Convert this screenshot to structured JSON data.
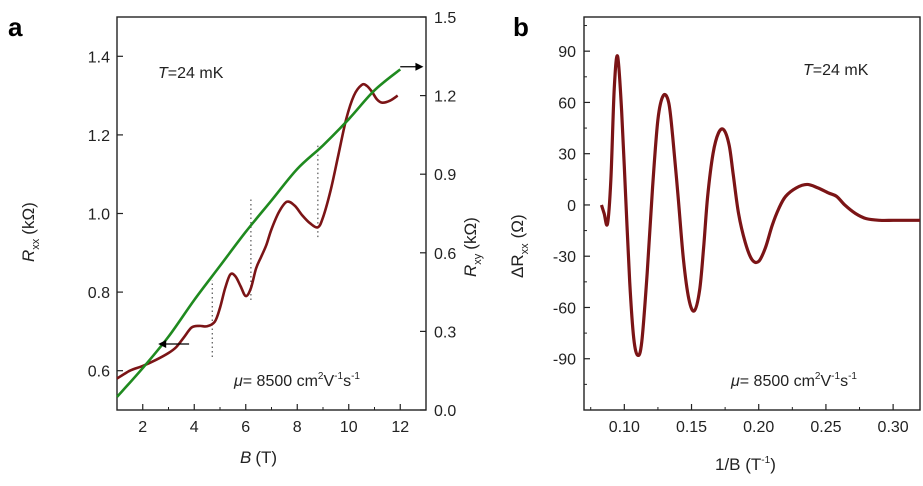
{
  "colors": {
    "rxx": "#7b1416",
    "rxy": "#1f8a1f",
    "axis": "#222222",
    "dotted": "#555555"
  },
  "chart_data": [
    {
      "panel": "a",
      "type": "line",
      "annotation_temp": "=24 mK",
      "annotation_temp_symbol": "T",
      "annotation_mu": "= 8500 cm",
      "annotation_mu_symbol": "μ",
      "annotation_mu_units": {
        "sup1": "2",
        "mid": "V",
        "sup2": "-1",
        "mid2": "s",
        "sup3": "-1"
      },
      "xlabel": {
        "symbol": "B",
        "unit": "(T)"
      },
      "ylabel_left": {
        "symbol": "R",
        "sub": "xx",
        "unit": "(kΩ)"
      },
      "ylabel_right": {
        "symbol": "R",
        "sub": "xy",
        "unit": "(kΩ)"
      },
      "xlim": [
        1,
        13
      ],
      "ylim_left": [
        0.5,
        1.5
      ],
      "ylim_right": [
        0.0,
        1.5
      ],
      "xticks": [
        "2",
        "4",
        "6",
        "8",
        "10",
        "12"
      ],
      "xtick_values": [
        2,
        4,
        6,
        8,
        10,
        12
      ],
      "yticks_left": [
        "0.6",
        "0.8",
        "1.0",
        "1.2",
        "1.4"
      ],
      "ytick_left_values": [
        0.6,
        0.8,
        1.0,
        1.2,
        1.4
      ],
      "yticks_right": [
        "0.0",
        "0.3",
        "0.6",
        "0.9",
        "1.2",
        "1.5"
      ],
      "ytick_right_values": [
        0.0,
        0.3,
        0.6,
        0.9,
        1.2,
        1.5
      ],
      "series": [
        {
          "axis": "left",
          "color": "#7b1416",
          "x": [
            1.0,
            1.5,
            2.0,
            2.5,
            3.0,
            3.3,
            3.6,
            3.9,
            4.2,
            4.5,
            4.8,
            5.0,
            5.2,
            5.4,
            5.6,
            5.8,
            6.0,
            6.2,
            6.4,
            6.6,
            6.8,
            7.0,
            7.3,
            7.6,
            7.9,
            8.2,
            8.5,
            8.8,
            9.0,
            9.3,
            9.6,
            9.9,
            10.2,
            10.5,
            10.7,
            10.9,
            11.1,
            11.3,
            11.6,
            11.9
          ],
          "y": [
            0.58,
            0.6,
            0.612,
            0.627,
            0.645,
            0.66,
            0.685,
            0.71,
            0.714,
            0.713,
            0.725,
            0.76,
            0.81,
            0.845,
            0.84,
            0.815,
            0.79,
            0.81,
            0.86,
            0.89,
            0.92,
            0.96,
            1.005,
            1.03,
            1.02,
            0.995,
            0.975,
            0.965,
            0.99,
            1.06,
            1.15,
            1.24,
            1.3,
            1.327,
            1.325,
            1.31,
            1.29,
            1.282,
            1.287,
            1.3
          ]
        },
        {
          "axis": "right",
          "color": "#1f8a1f",
          "x": [
            1.0,
            2.0,
            3.0,
            4.0,
            5.0,
            6.0,
            7.0,
            8.0,
            9.0,
            10.0,
            11.0,
            12.0
          ],
          "y": [
            0.05,
            0.16,
            0.28,
            0.42,
            0.55,
            0.68,
            0.8,
            0.92,
            1.01,
            1.11,
            1.22,
            1.3
          ]
        }
      ],
      "dotted_markers": [
        {
          "x": 4.7,
          "y_low": 0.635,
          "y_high": 0.83
        },
        {
          "x": 6.2,
          "y_low": 0.78,
          "y_high": 1.04
        },
        {
          "x": 8.8,
          "y_low": 0.94,
          "y_high": 1.18
        }
      ],
      "arrows": [
        {
          "series": "left",
          "from_x": 3.8,
          "to_x": 2.6,
          "y": 0.668
        },
        {
          "series": "right",
          "from_x": 12.0,
          "to_x": 12.9,
          "y": 1.31
        }
      ]
    },
    {
      "panel": "b",
      "type": "line",
      "annotation_temp": "=24 mK",
      "annotation_temp_symbol": "T",
      "annotation_mu": "= 8500 cm",
      "annotation_mu_symbol": "μ",
      "annotation_mu_units": {
        "sup1": "2",
        "mid": "V",
        "sup2": "-1",
        "mid2": "s",
        "sup3": "-1"
      },
      "xlabel": {
        "main": "1/B (T",
        "sup": "-1",
        "end": ")"
      },
      "ylabel": {
        "main": "ΔR",
        "sub": "xx",
        "unit": "(Ω)"
      },
      "xlim": [
        0.07,
        0.32
      ],
      "ylim": [
        -120,
        110
      ],
      "xticks": [
        "0.10",
        "0.15",
        "0.20",
        "0.25",
        "0.30"
      ],
      "xtick_values": [
        0.1,
        0.15,
        0.2,
        0.25,
        0.3
      ],
      "yticks": [
        "-90",
        "-60",
        "-30",
        "0",
        "30",
        "60",
        "90"
      ],
      "ytick_values": [
        -90,
        -60,
        -30,
        0,
        30,
        60,
        90
      ],
      "series": [
        {
          "color": "#7b1416",
          "x": [
            0.083,
            0.085,
            0.0875,
            0.09,
            0.0925,
            0.095,
            0.098,
            0.101,
            0.104,
            0.107,
            0.11,
            0.113,
            0.117,
            0.121,
            0.125,
            0.129,
            0.133,
            0.136,
            0.14,
            0.144,
            0.148,
            0.152,
            0.156,
            0.159,
            0.162,
            0.166,
            0.17,
            0.174,
            0.178,
            0.181,
            0.185,
            0.19,
            0.195,
            0.2,
            0.205,
            0.21,
            0.215,
            0.22,
            0.228,
            0.236,
            0.244,
            0.252,
            0.258,
            0.264,
            0.272,
            0.28,
            0.29,
            0.3,
            0.31,
            0.32
          ],
          "y": [
            0,
            -5,
            -11,
            15,
            68,
            87,
            55,
            5,
            -45,
            -78,
            -88,
            -80,
            -40,
            10,
            50,
            64,
            60,
            40,
            5,
            -32,
            -55,
            -62,
            -50,
            -25,
            5,
            30,
            42,
            44,
            35,
            18,
            -5,
            -22,
            -32,
            -33,
            -25,
            -12,
            -2,
            5,
            10,
            12,
            10,
            7,
            5,
            0,
            -5,
            -8,
            -9,
            -9,
            -9,
            -9
          ]
        }
      ]
    }
  ]
}
